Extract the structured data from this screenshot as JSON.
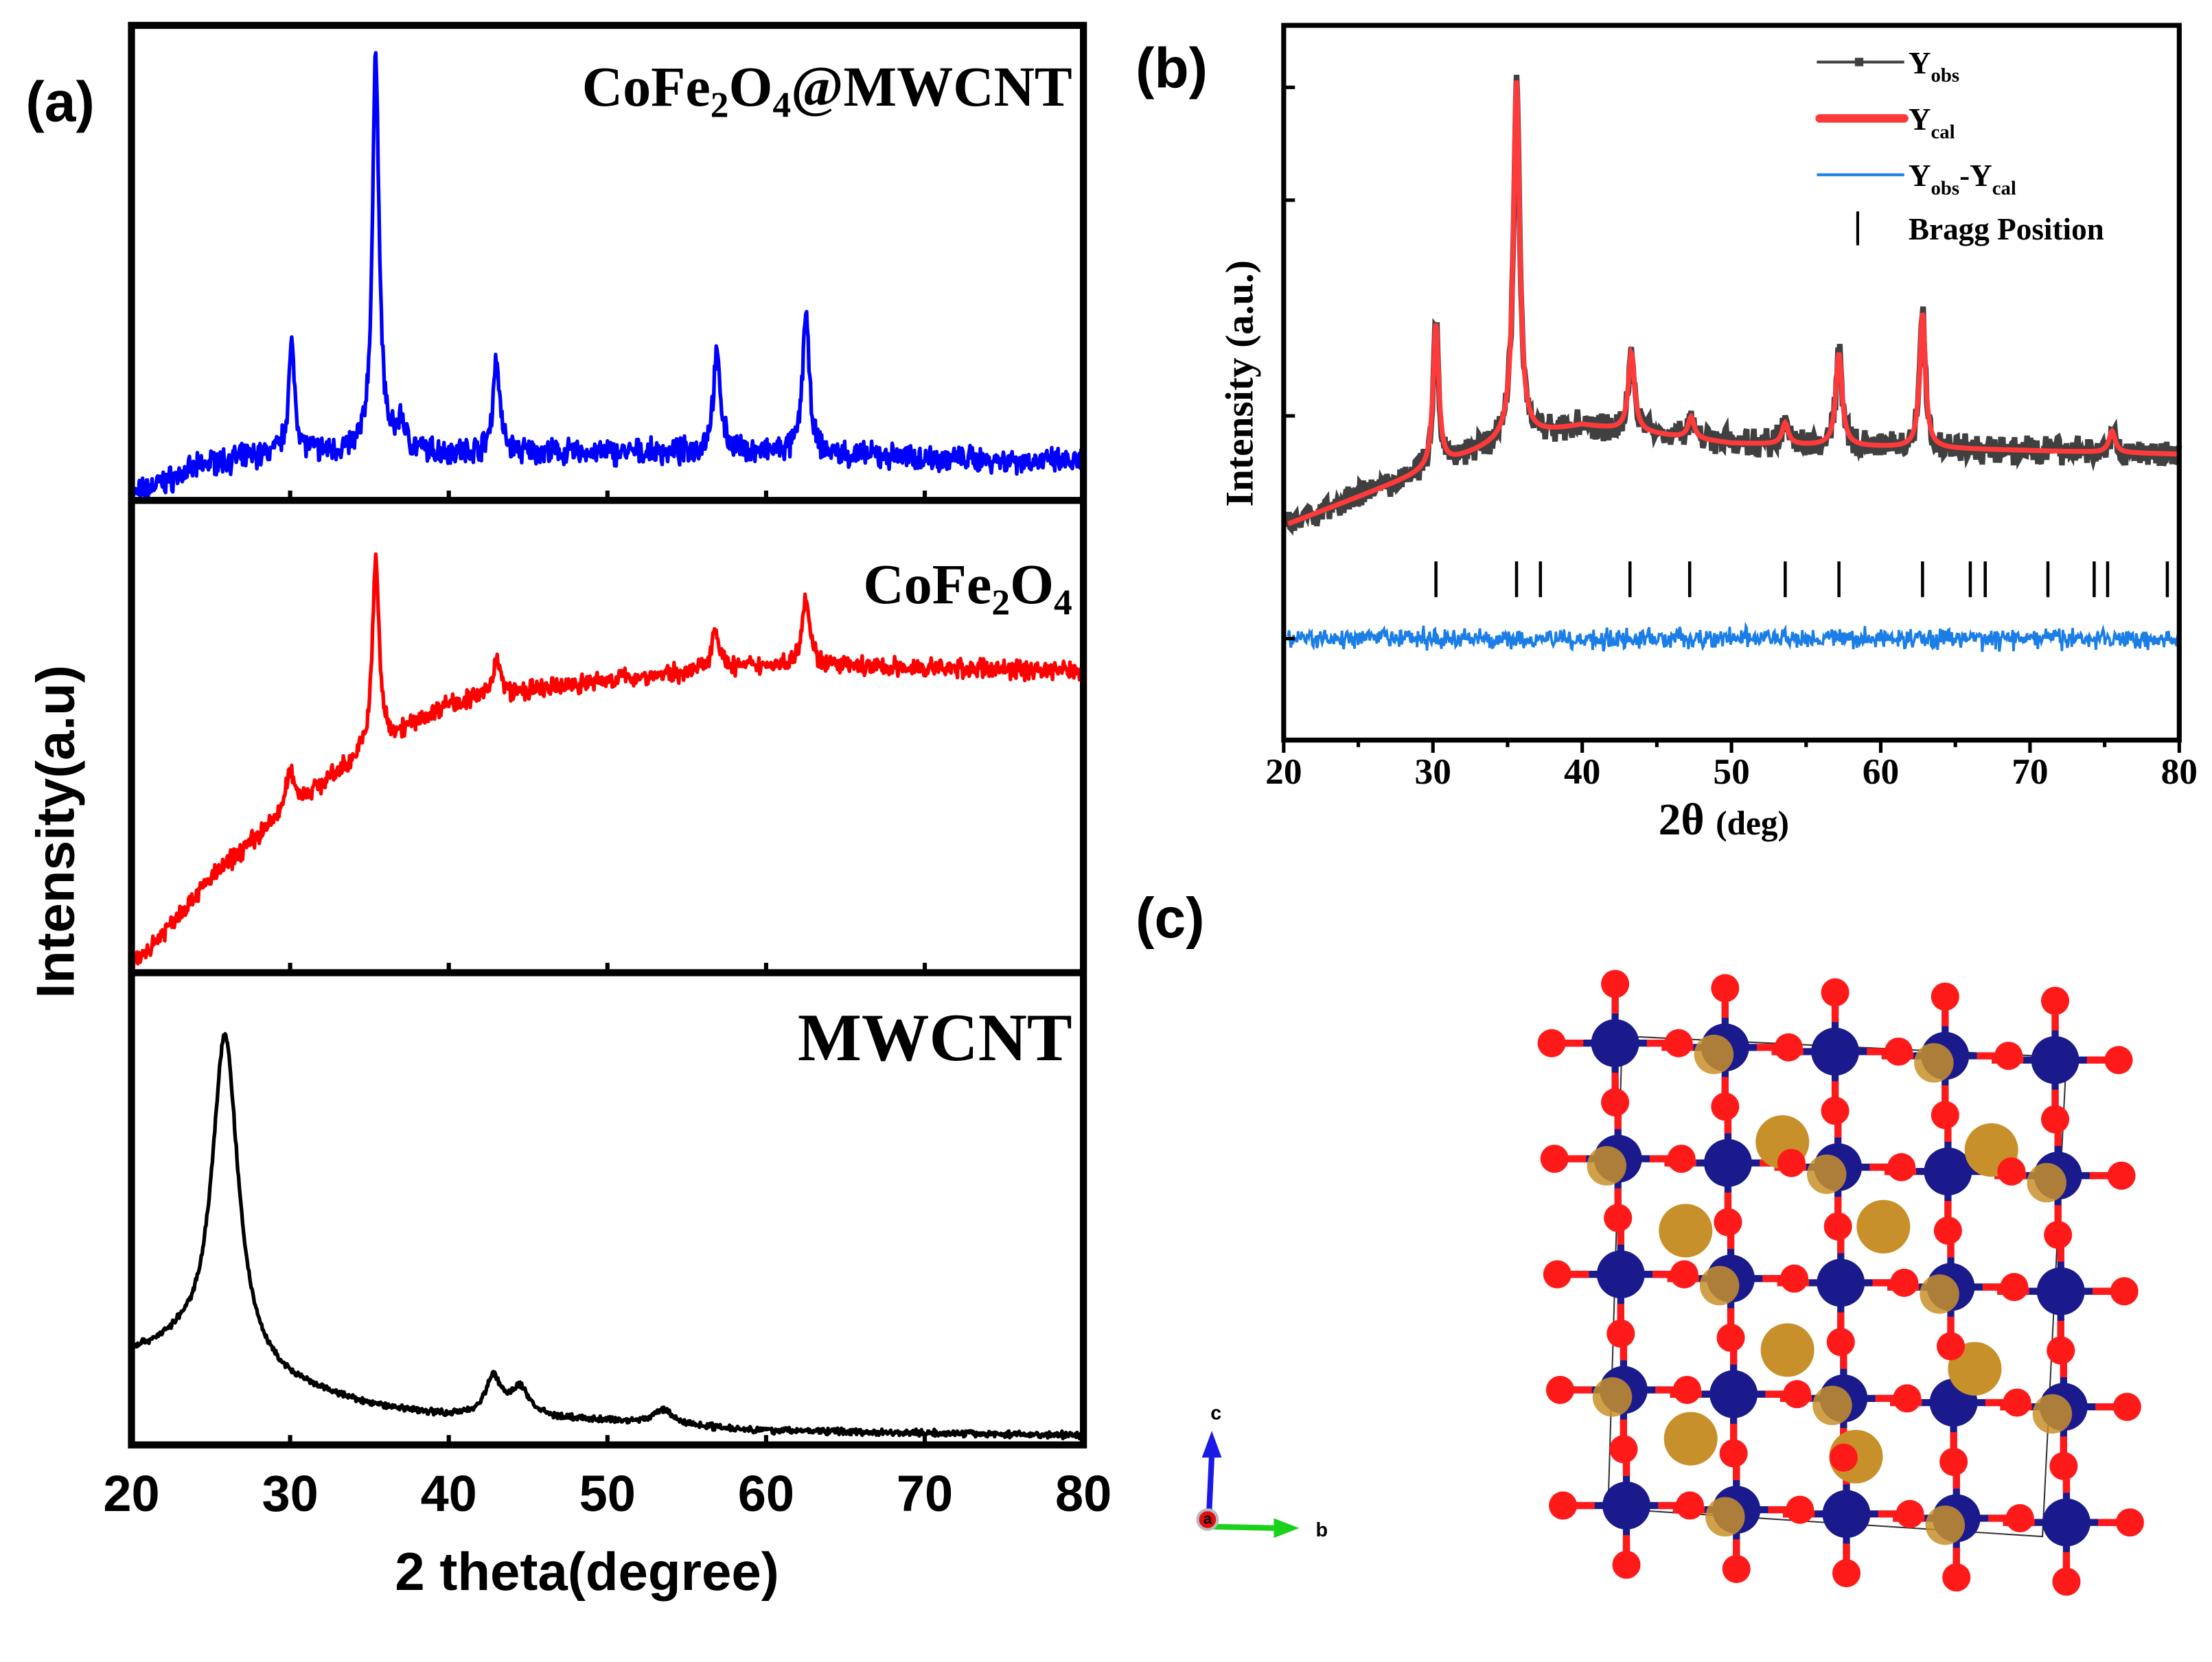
{
  "chart_data": [
    {
      "panel_label": "(a)",
      "type": "line",
      "title": "",
      "xlabel": "2 theta(degree)",
      "ylabel": "Intensity(a.u)",
      "xlim": [
        20,
        80
      ],
      "xticks": [
        "20",
        "30",
        "40",
        "50",
        "60",
        "70",
        "80"
      ],
      "ylim": [
        0,
        100
      ],
      "grid": false,
      "series": [
        {
          "name": "CoFe2O4@MWCNT",
          "label_main": "CoFe",
          "label_sub1": "2",
          "label_mid": "O",
          "label_sub2": "4",
          "label_tail": "@MWCNT",
          "color": "#0000ff",
          "baseline": [
            [
              20,
              1
            ],
            [
              25,
              8
            ],
            [
              30,
              10
            ],
            [
              40,
              10
            ],
            [
              60,
              10
            ],
            [
              80,
              8
            ]
          ],
          "peaks": [
            [
              30.1,
              22,
              0.5
            ],
            [
              35.4,
              84,
              0.5
            ],
            [
              37.0,
              6,
              0.6
            ],
            [
              43.0,
              20,
              0.5
            ],
            [
              56.9,
              20,
              0.6
            ],
            [
              62.5,
              30,
              0.5
            ]
          ],
          "noise": 4
        },
        {
          "name": "CoFe2O4",
          "label_main": "CoFe",
          "label_sub1": "2",
          "label_mid": "O",
          "label_sub2": "4",
          "label_tail": "",
          "color": "#ff0000",
          "baseline": [
            [
              20,
              1
            ],
            [
              25,
              20
            ],
            [
              30,
              35
            ],
            [
              35,
              47
            ],
            [
              38,
              53
            ],
            [
              40,
              57
            ],
            [
              50,
              62
            ],
            [
              60,
              65
            ],
            [
              80,
              64
            ]
          ],
          "peaks": [
            [
              30.0,
              8,
              0.6
            ],
            [
              35.4,
              40,
              0.5
            ],
            [
              43.0,
              8,
              0.6
            ],
            [
              56.8,
              9,
              0.6
            ],
            [
              62.5,
              15,
              0.6
            ]
          ],
          "noise": 3
        },
        {
          "name": "MWCNT",
          "label_main": "MWCNT",
          "color": "#000000",
          "baseline": [
            [
              20,
              19
            ],
            [
              23,
              20
            ],
            [
              30,
              12
            ],
            [
              35,
              8
            ],
            [
              40,
              6
            ],
            [
              50,
              5
            ],
            [
              60,
              3
            ],
            [
              80,
              2
            ]
          ],
          "peaks": [
            [
              25.9,
              70,
              2.0
            ],
            [
              42.8,
              8,
              1.2
            ],
            [
              44.5,
              6,
              1.5
            ],
            [
              53.5,
              3,
              1.5
            ]
          ],
          "noise": 1
        }
      ]
    },
    {
      "panel_label": "(b)",
      "type": "line",
      "xlabel_main": "2θ",
      "xlabel_unit": "(deg)",
      "ylabel": "Intensity (a.u.)",
      "xlim": [
        20,
        80
      ],
      "xticks": [
        "20",
        "30",
        "40",
        "50",
        "60",
        "70",
        "80"
      ],
      "ylim": [
        0,
        100
      ],
      "legend": {
        "placement": "top-right",
        "entries": [
          {
            "main": "Y",
            "sub": "obs",
            "color": "#404040"
          },
          {
            "main": "Y",
            "sub": "cal",
            "color": "#ff3a3a"
          },
          {
            "main": "Y",
            "sub": "obs",
            "mid": "-Y",
            "sub2": "cal",
            "color": "#1a7ee6"
          },
          {
            "main": "Bragg Position",
            "color": "#000000"
          }
        ]
      },
      "series": [
        {
          "name": "Yobs",
          "color": "#404040",
          "baseline": [
            [
              20,
              30
            ],
            [
              25,
              34
            ],
            [
              30,
              38
            ],
            [
              35,
              42
            ],
            [
              40,
              44
            ],
            [
              50,
              41.5
            ],
            [
              60,
              41
            ],
            [
              80,
              40
            ]
          ],
          "peaks": [
            [
              30.2,
              20,
              0.45
            ],
            [
              35.6,
              50,
              0.5
            ],
            [
              43.3,
              11,
              0.5
            ],
            [
              47.3,
              3,
              0.5
            ],
            [
              53.6,
              3,
              0.5
            ],
            [
              57.2,
              13,
              0.5
            ],
            [
              62.8,
              19,
              0.45
            ],
            [
              75.5,
              3,
              0.5
            ]
          ],
          "noise": 3
        },
        {
          "name": "Ycal",
          "color": "#ff3a3a"
        },
        {
          "name": "Yobs-Ycal",
          "color": "#1a7ee6",
          "offset": 14.2,
          "noise": 1.8
        }
      ],
      "bragg_positions": [
        30.2,
        35.6,
        37.2,
        43.2,
        47.2,
        53.6,
        57.2,
        62.8,
        66.0,
        67.0,
        71.2,
        74.3,
        75.2,
        79.2
      ],
      "bragg_range": [
        20,
        25
      ]
    },
    {
      "panel_label": "(c)",
      "type": "crystal-structure",
      "axes": {
        "a": "a",
        "b": "b",
        "c": "c"
      },
      "atom_colors": {
        "O": "#ff1a1a",
        "Fe_oct": "#1a1a8c",
        "Co_tet": "#c8902a"
      }
    }
  ]
}
